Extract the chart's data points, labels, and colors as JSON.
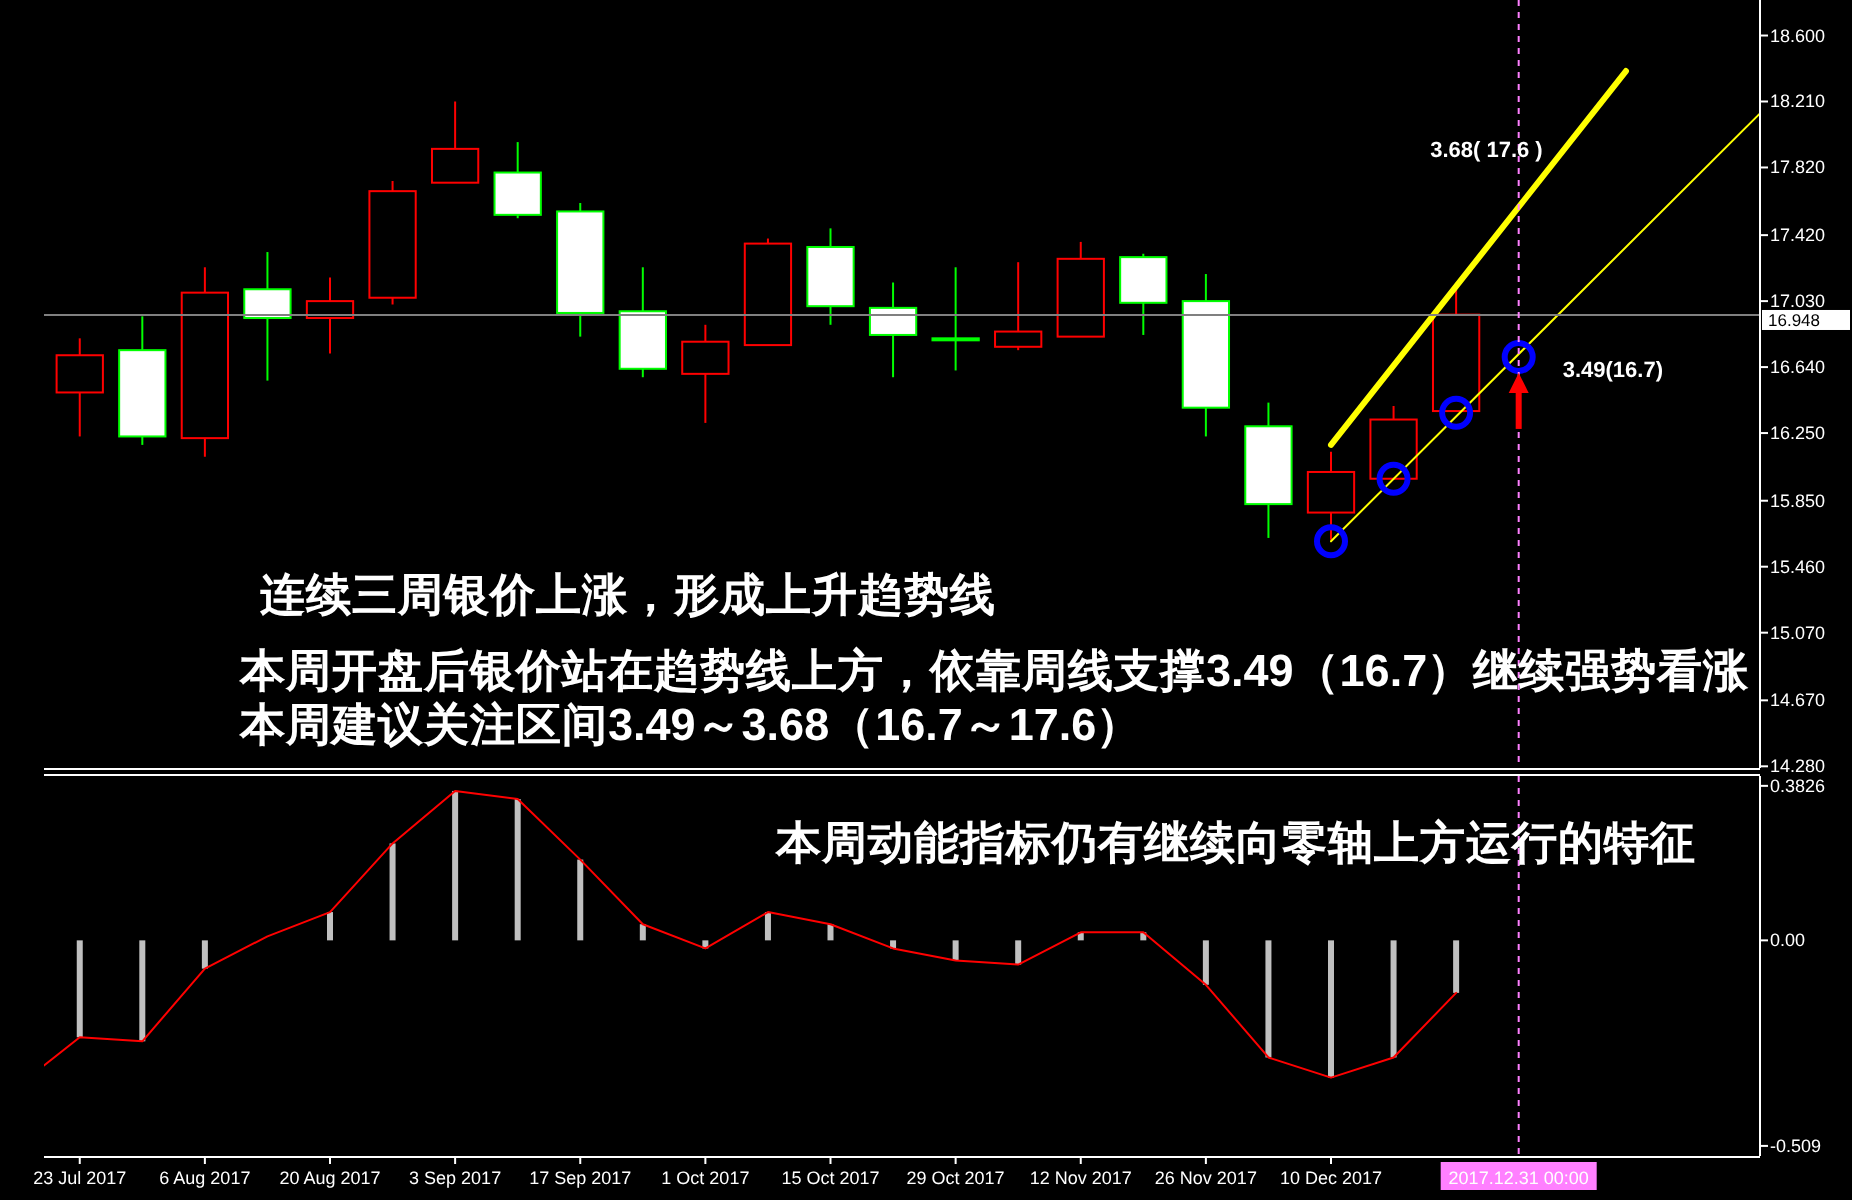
{
  "chart_data": [
    {
      "type": "candlestick",
      "x": [
        "2017-07-23",
        "2017-07-30",
        "2017-08-06",
        "2017-08-13",
        "2017-08-20",
        "2017-08-27",
        "2017-09-03",
        "2017-09-10",
        "2017-09-17",
        "2017-09-24",
        "2017-10-01",
        "2017-10-08",
        "2017-10-15",
        "2017-10-22",
        "2017-10-29",
        "2017-11-05",
        "2017-11-12",
        "2017-11-19",
        "2017-11-26",
        "2017-12-03",
        "2017-12-10",
        "2017-12-17",
        "2017-12-24"
      ],
      "ohlc": [
        [
          16.49,
          16.81,
          16.23,
          16.71
        ],
        [
          16.74,
          16.94,
          16.18,
          16.23
        ],
        [
          16.22,
          17.23,
          16.11,
          17.08
        ],
        [
          17.1,
          17.32,
          16.56,
          16.93
        ],
        [
          16.93,
          17.17,
          16.72,
          17.03
        ],
        [
          17.05,
          17.74,
          17.01,
          17.68
        ],
        [
          17.73,
          18.21,
          17.73,
          17.93
        ],
        [
          17.79,
          17.97,
          17.52,
          17.54
        ],
        [
          17.56,
          17.61,
          16.82,
          16.96
        ],
        [
          16.97,
          17.23,
          16.58,
          16.63
        ],
        [
          16.6,
          16.89,
          16.31,
          16.79
        ],
        [
          16.77,
          17.4,
          16.77,
          17.37
        ],
        [
          17.35,
          17.46,
          16.89,
          17.0
        ],
        [
          16.99,
          17.14,
          16.58,
          16.83
        ],
        [
          16.81,
          17.23,
          16.62,
          16.8
        ],
        [
          16.76,
          17.26,
          16.74,
          16.85
        ],
        [
          16.82,
          17.38,
          16.82,
          17.28
        ],
        [
          17.29,
          17.31,
          16.83,
          17.02
        ],
        [
          17.03,
          17.19,
          16.23,
          16.4
        ],
        [
          16.29,
          16.43,
          15.63,
          15.83
        ],
        [
          15.78,
          16.14,
          15.62,
          16.02
        ],
        [
          15.98,
          16.41,
          15.98,
          16.33
        ],
        [
          16.38,
          17.11,
          16.38,
          16.95
        ]
      ],
      "colors": [
        "#ff0000",
        "#00ff00",
        "#ff0000",
        "#00ff00",
        "#ff0000",
        "#ff0000",
        "#ff0000",
        "#00ff00",
        "#00ff00",
        "#00ff00",
        "#ff0000",
        "#ff0000",
        "#00ff00",
        "#00ff00",
        "#00ff00",
        "#ff0000",
        "#ff0000",
        "#00ff00",
        "#00ff00",
        "#00ff00",
        "#ff0000",
        "#ff0000",
        "#ff0000"
      ],
      "xlim": [
        "2017-07-19",
        "2018-01-27"
      ],
      "ylim": [
        14.27,
        18.81
      ],
      "yticks": [
        {
          "value": 18.6,
          "label": "18.600"
        },
        {
          "value": 18.21,
          "label": "18.210"
        },
        {
          "value": 17.82,
          "label": "17.820"
        },
        {
          "value": 17.42,
          "label": "17.420"
        },
        {
          "value": 17.03,
          "label": "17.030"
        },
        {
          "value": 16.64,
          "label": "16.640"
        },
        {
          "value": 16.25,
          "label": "16.250"
        },
        {
          "value": 15.85,
          "label": "15.850"
        },
        {
          "value": 15.46,
          "label": "15.460"
        },
        {
          "value": 15.07,
          "label": "15.070"
        },
        {
          "value": 14.67,
          "label": "14.670"
        },
        {
          "value": 14.28,
          "label": "14.280"
        }
      ],
      "tick_labels": "y",
      "series": [
        {
          "type": "line",
          "color": "#ffff00",
          "x": [
            "2017-12-10",
            "2018-01-12"
          ],
          "values": [
            16.18,
            18.39
          ]
        },
        {
          "type": "line",
          "color": "#ffff00",
          "x": [
            "2017-12-10",
            "2018-01-27"
          ],
          "values": [
            15.61,
            18.14
          ]
        },
        {
          "type": "scatter",
          "color": "#0000ff",
          "marker": "circle",
          "x": [
            "2017-12-10",
            "2017-12-17",
            "2017-12-24",
            "2017-12-31"
          ],
          "values": [
            15.61,
            15.98,
            16.37,
            16.7
          ]
        }
      ],
      "ref_lines": [
        {
          "axis": "y",
          "value": 16.948,
          "label": "16.948",
          "color": "#808080"
        },
        {
          "axis": "x",
          "value": "2017-12-31",
          "color": "#ff80ff",
          "line_style": "dashed"
        }
      ],
      "annotations": [
        {
          "text": "3.68( 17.6 )",
          "x": "2017-12-31",
          "y": 17.6
        },
        {
          "text": "3.49(16.7)",
          "x": "2017-12-31",
          "y": 16.7
        },
        "连续三周银价上涨，形成上升趋势线",
        "本周开盘后银价站在趋势线上方，依靠周线支撑3.49（16.7）继续强势看涨",
        "本周建议关注区间3.49～3.68（16.7～17.6）"
      ]
    },
    {
      "type": "bar",
      "x": [
        "2017-07-23",
        "2017-07-30",
        "2017-08-06",
        "2017-08-13",
        "2017-08-20",
        "2017-08-27",
        "2017-09-03",
        "2017-09-10",
        "2017-09-17",
        "2017-09-24",
        "2017-10-01",
        "2017-10-08",
        "2017-10-15",
        "2017-10-22",
        "2017-10-29",
        "2017-11-05",
        "2017-11-12",
        "2017-11-19",
        "2017-11-26",
        "2017-12-03",
        "2017-12-10",
        "2017-12-17",
        "2017-12-24"
      ],
      "xlim": [
        "2017-07-19",
        "2018-01-27"
      ],
      "xticks": [
        {
          "value": "2017-07-23",
          "label": "23 Jul 2017"
        },
        {
          "value": "2017-08-06",
          "label": "6 Aug 2017"
        },
        {
          "value": "2017-08-20",
          "label": "20 Aug 2017"
        },
        {
          "value": "2017-09-03",
          "label": "3 Sep 2017"
        },
        {
          "value": "2017-09-17",
          "label": "17 Sep 2017"
        },
        {
          "value": "2017-10-01",
          "label": "1 Oct 2017"
        },
        {
          "value": "2017-10-15",
          "label": "15 Oct 2017"
        },
        {
          "value": "2017-10-29",
          "label": "29 Oct 2017"
        },
        {
          "value": "2017-11-12",
          "label": "12 Nov 2017"
        },
        {
          "value": "2017-11-26",
          "label": "26 Nov 2017"
        },
        {
          "value": "2017-12-10",
          "label": "10 Dec 2017"
        }
      ],
      "ylim": [
        -0.534,
        0.407
      ],
      "yticks": [
        {
          "value": 0.3826,
          "label": "0.3826"
        },
        {
          "value": 0,
          "label": "0.00"
        },
        {
          "value": -0.509,
          "label": "-0.509"
        }
      ],
      "series": [
        {
          "type": "bar",
          "color": "#c0c0c0",
          "values": [
            -0.24,
            -0.25,
            -0.07,
            0.0,
            0.07,
            0.24,
            0.37,
            0.35,
            0.2,
            0.04,
            -0.02,
            0.07,
            0.04,
            -0.02,
            -0.05,
            -0.06,
            0.02,
            0.02,
            -0.11,
            -0.29,
            -0.34,
            -0.29,
            -0.13
          ]
        },
        {
          "type": "line",
          "color": "#ff0000",
          "x": [
            "2017-07-19",
            "2017-07-23",
            "2017-07-30",
            "2017-08-06",
            "2017-08-13",
            "2017-08-20",
            "2017-08-27",
            "2017-09-03",
            "2017-09-10",
            "2017-09-17",
            "2017-09-24",
            "2017-10-01",
            "2017-10-08",
            "2017-10-15",
            "2017-10-22",
            "2017-10-29",
            "2017-11-05",
            "2017-11-12",
            "2017-11-19",
            "2017-11-26",
            "2017-12-03",
            "2017-12-10",
            "2017-12-17",
            "2017-12-24"
          ],
          "values": [
            -0.31,
            -0.24,
            -0.25,
            -0.07,
            0.01,
            0.07,
            0.24,
            0.37,
            0.35,
            0.2,
            0.04,
            -0.02,
            0.07,
            0.04,
            -0.02,
            -0.05,
            -0.06,
            0.02,
            0.02,
            -0.11,
            -0.29,
            -0.34,
            -0.29,
            -0.13
          ]
        }
      ],
      "ref_lines": [
        {
          "axis": "x",
          "value": "2017-12-31",
          "label": "2017.12.31 00:00",
          "color": "#ff80ff",
          "line_style": "dashed"
        }
      ],
      "annotations": [
        "本周动能指标仍有继续向零轴上方运行的特征"
      ]
    }
  ]
}
